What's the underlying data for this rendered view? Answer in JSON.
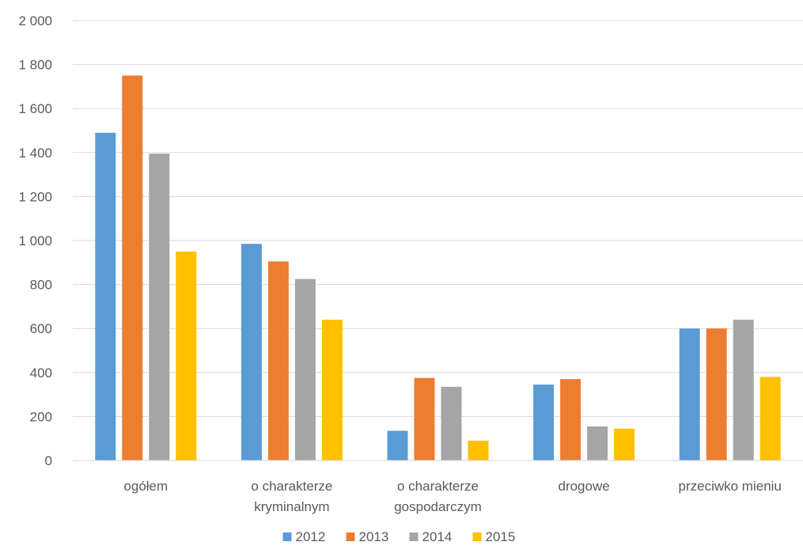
{
  "chart_data": {
    "type": "bar",
    "categories": [
      [
        "ogółem"
      ],
      [
        "o charakterze",
        "kryminalnym"
      ],
      [
        "o charakterze",
        "gospodarczym"
      ],
      [
        "drogowe"
      ],
      [
        "przeciwko mieniu"
      ]
    ],
    "series": [
      {
        "name": "2012",
        "color": "#5B9BD5",
        "values": [
          1490,
          985,
          135,
          345,
          600
        ]
      },
      {
        "name": "2013",
        "color": "#ED7D31",
        "values": [
          1750,
          905,
          375,
          370,
          600
        ]
      },
      {
        "name": "2014",
        "color": "#A5A5A5",
        "values": [
          1395,
          825,
          335,
          155,
          640
        ]
      },
      {
        "name": "2015",
        "color": "#FFC000",
        "values": [
          950,
          640,
          90,
          145,
          380
        ]
      }
    ],
    "ylim": [
      0,
      2000
    ],
    "yticks": [
      0,
      200,
      400,
      600,
      800,
      1000,
      1200,
      1400,
      1600,
      1800,
      2000
    ],
    "ytick_labels": [
      "0",
      "200",
      "400",
      "600",
      "800",
      "1 000",
      "1 200",
      "1 400",
      "1 600",
      "1 800",
      "2 000"
    ],
    "grid": true,
    "legend_position": "bottom",
    "title": "",
    "xlabel": "",
    "ylabel": ""
  }
}
